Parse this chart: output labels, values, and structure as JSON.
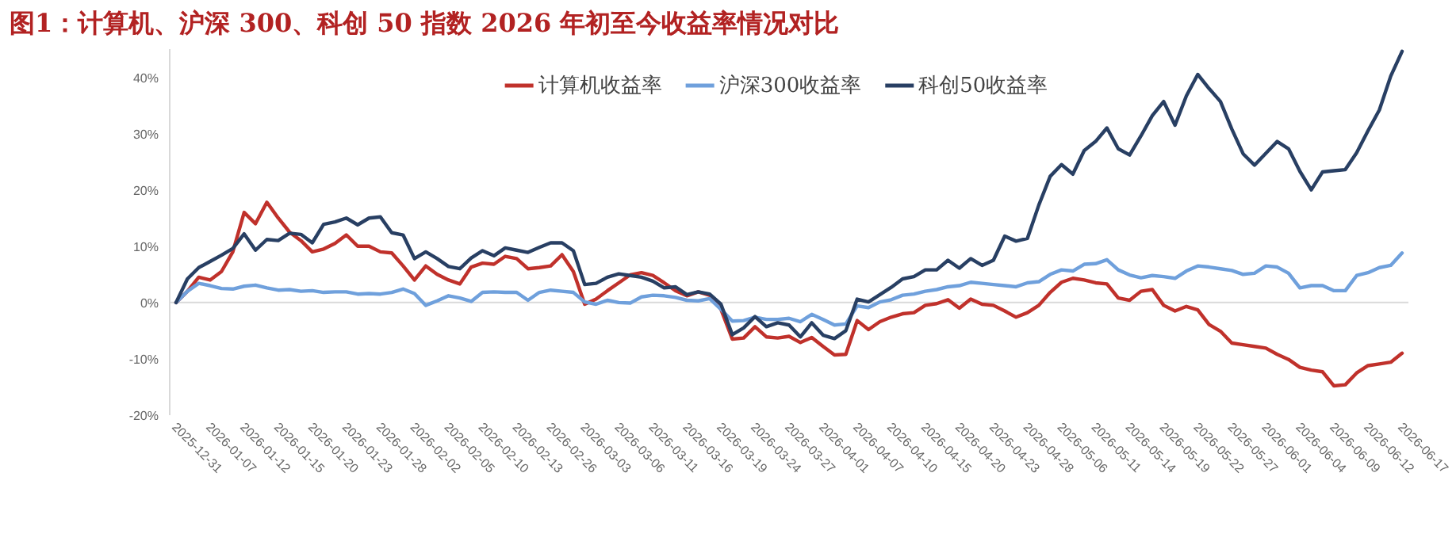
{
  "chart_data": {
    "type": "line",
    "title": "图1：计算机、沪深 300、科创 50 指数 2026 年初至今收益率情况对比",
    "categories": [
      "2025-12-31",
      null,
      null,
      "2026-01-07",
      null,
      null,
      "2026-01-12",
      null,
      null,
      "2026-01-15",
      null,
      null,
      "2026-01-20",
      null,
      null,
      "2026-01-23",
      null,
      null,
      "2026-01-28",
      null,
      null,
      "2026-02-02",
      null,
      null,
      "2026-02-05",
      null,
      null,
      "2026-02-10",
      null,
      null,
      "2026-02-13",
      null,
      null,
      "2026-02-26",
      null,
      null,
      "2026-03-03",
      null,
      null,
      "2026-03-06",
      null,
      null,
      "2026-03-11",
      null,
      null,
      "2026-03-16",
      null,
      null,
      "2026-03-19",
      null,
      null,
      "2026-03-24",
      null,
      null,
      "2026-03-27",
      null,
      null,
      "2026-04-01",
      null,
      null,
      "2026-04-07",
      null,
      null,
      "2026-04-10",
      null,
      null,
      "2026-04-15",
      null,
      null,
      "2026-04-20",
      null,
      null,
      "2026-04-23",
      null,
      null,
      "2026-04-28",
      null,
      null,
      "2026-05-06",
      null,
      null,
      "2026-05-11",
      null,
      null,
      "2026-05-14",
      null,
      null,
      "2026-05-19",
      null,
      null,
      "2026-05-22",
      null,
      null,
      "2026-05-27",
      null,
      null,
      "2026-06-01",
      null,
      null,
      "2026-06-04",
      null,
      null,
      "2026-06-09",
      null,
      null,
      "2026-06-12",
      null,
      null,
      "2026-06-17"
    ],
    "series": [
      {
        "name": "计算机收益率",
        "color": "#c0312b",
        "values": [
          0,
          2,
          4.5,
          4,
          5.5,
          9,
          16,
          14,
          17.8,
          15,
          12.5,
          11,
          9,
          9.5,
          10.5,
          12,
          10,
          10,
          9,
          8.8,
          6.5,
          4,
          6.5,
          5,
          4,
          3.3,
          6.3,
          7,
          6.8,
          8.2,
          7.8,
          6,
          6.2,
          6.5,
          8.5,
          5.5,
          -0.3,
          0.6,
          2.1,
          3.5,
          4.9,
          5.3,
          4.8,
          3.5,
          2.1,
          1.2,
          1.9,
          1.3,
          -1.2,
          -6.5,
          -6.3,
          -4.3,
          -6.1,
          -6.3,
          -6,
          -7.1,
          -6.2,
          -7.8,
          -9.3,
          -9.2,
          -3.2,
          -4.8,
          -3.4,
          -2.6,
          -2,
          -1.8,
          -0.5,
          -0.2,
          0.5,
          -1,
          0.6,
          -0.3,
          -0.5,
          -1.5,
          -2.6,
          -1.8,
          -0.5,
          1.8,
          3.6,
          4.3,
          4,
          3.5,
          3.3,
          0.8,
          0.4,
          2,
          2.3,
          -0.5,
          -1.5,
          -0.7,
          -1.3,
          -3.9,
          -5.1,
          -7.2,
          -7.5,
          -7.8,
          -8.1,
          -9.2,
          -10.1,
          -11.5,
          -12,
          -12.3,
          -14.8,
          -14.6,
          -12.5,
          -11.2,
          -10.9,
          -10.6,
          -9
        ]
      },
      {
        "name": "沪深300收益率",
        "color": "#6fa0dc",
        "values": [
          0,
          2,
          3.4,
          3,
          2.5,
          2.4,
          2.9,
          3.1,
          2.6,
          2.2,
          2.3,
          2,
          2.1,
          1.8,
          1.9,
          1.9,
          1.5,
          1.6,
          1.5,
          1.8,
          2.4,
          1.6,
          -0.5,
          0.3,
          1.2,
          0.8,
          0.2,
          1.8,
          1.9,
          1.8,
          1.8,
          0.4,
          1.8,
          2.2,
          2,
          1.8,
          0.1,
          -0.3,
          0.4,
          0,
          -0.1,
          1,
          1.3,
          1.2,
          0.9,
          0.4,
          0.3,
          0.7,
          -1.2,
          -3.3,
          -3.2,
          -2.6,
          -3,
          -3,
          -2.8,
          -3.4,
          -2.1,
          -3,
          -4,
          -3.8,
          -0.6,
          -0.9,
          0.1,
          0.5,
          1.3,
          1.5,
          2,
          2.3,
          2.8,
          3,
          3.6,
          3.4,
          3.2,
          3,
          2.8,
          3.5,
          3.7,
          5,
          5.8,
          5.6,
          6.8,
          6.9,
          7.6,
          5.8,
          4.9,
          4.4,
          4.8,
          4.6,
          4.3,
          5.6,
          6.5,
          6.3,
          6,
          5.7,
          5,
          5.2,
          6.5,
          6.3,
          5.2,
          2.6,
          3,
          3,
          2.1,
          2.1,
          4.8,
          5.3,
          6.2,
          6.6,
          8.8
        ]
      },
      {
        "name": "科创50收益率",
        "color": "#283f63",
        "values": [
          0,
          4.2,
          6.2,
          7.3,
          8.4,
          9.6,
          12.2,
          9.3,
          11.2,
          11,
          12.3,
          12.1,
          10.6,
          13.9,
          14.3,
          15,
          13.8,
          15,
          15.2,
          12.4,
          12,
          7.8,
          9,
          7.8,
          6.4,
          6,
          7.9,
          9.2,
          8.3,
          9.7,
          9.3,
          8.9,
          9.8,
          10.6,
          10.6,
          9.2,
          3.2,
          3.4,
          4.5,
          5.1,
          4.8,
          4.5,
          3.8,
          2.6,
          2.8,
          1.4,
          1.9,
          1.5,
          -0.3,
          -5.7,
          -4.5,
          -2.5,
          -4.3,
          -3.6,
          -4,
          -6.1,
          -3.6,
          -5.8,
          -6.4,
          -5,
          0.6,
          0.1,
          1.4,
          2.7,
          4.2,
          4.6,
          5.8,
          5.8,
          7.5,
          6.1,
          7.8,
          6.6,
          7.5,
          11.8,
          10.9,
          11.4,
          17.3,
          22.4,
          24.5,
          22.8,
          27,
          28.6,
          31,
          27.3,
          26.2,
          29.6,
          33.2,
          35.7,
          31.5,
          36.7,
          40.5,
          38,
          35.7,
          30.8,
          26.4,
          24.4,
          26.5,
          28.6,
          27.3,
          23.3,
          20,
          23.2,
          23.4,
          23.6,
          26.6,
          30.5,
          34.2,
          40.2,
          44.6
        ]
      }
    ],
    "ylim": [
      -20,
      45
    ],
    "yticks": [
      {
        "value": -20,
        "label": "-20%"
      },
      {
        "value": -10,
        "label": "-10%"
      },
      {
        "value": 0,
        "label": "0%"
      },
      {
        "value": 10,
        "label": "10%"
      },
      {
        "value": 20,
        "label": "20%"
      },
      {
        "value": 30,
        "label": "30%"
      },
      {
        "value": 40,
        "label": "40%"
      }
    ],
    "legend": "top",
    "line_style": "solid"
  }
}
